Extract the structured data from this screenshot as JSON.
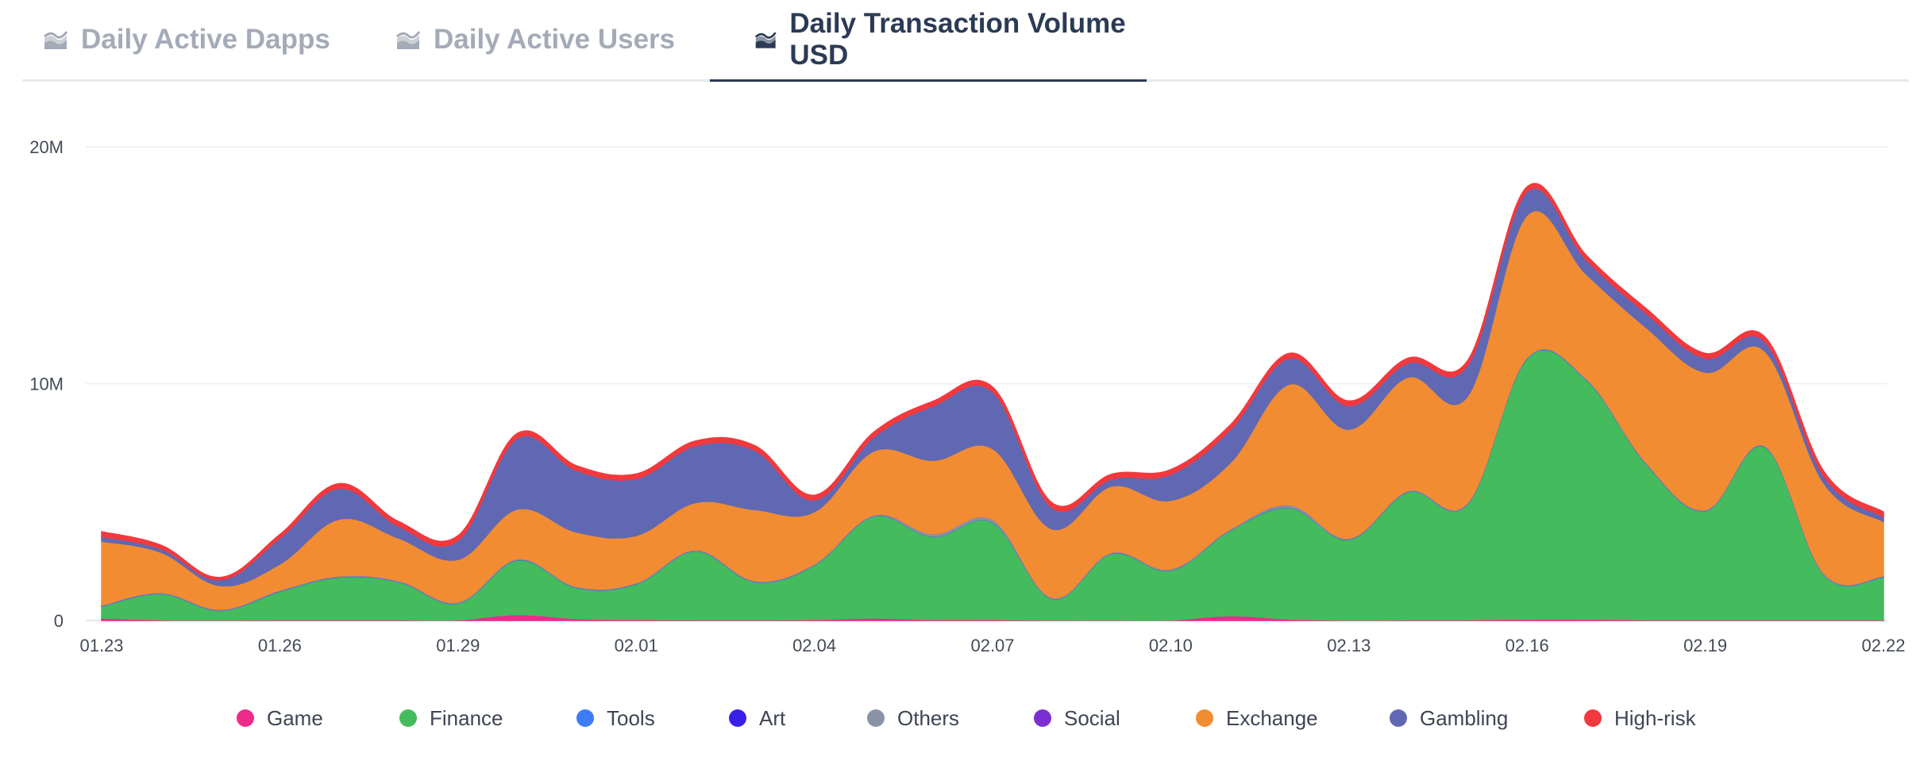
{
  "tabs": [
    {
      "label": "Daily Active Dapps",
      "icon": "area-chart-icon",
      "active": false
    },
    {
      "label": "Daily Active Users",
      "icon": "area-chart-icon",
      "active": false
    },
    {
      "label": "Daily Transaction Volume USD",
      "icon": "area-chart-icon",
      "active": true
    }
  ],
  "chart_data": {
    "type": "area",
    "stacked": true,
    "title": "Daily Transaction Volume USD",
    "x": [
      "01.23",
      "01.24",
      "01.25",
      "01.26",
      "01.27",
      "01.28",
      "01.29",
      "01.30",
      "01.31",
      "02.01",
      "02.02",
      "02.03",
      "02.04",
      "02.05",
      "02.06",
      "02.07",
      "02.08",
      "02.09",
      "02.10",
      "02.11",
      "02.12",
      "02.13",
      "02.14",
      "02.15",
      "02.16",
      "02.17",
      "02.18",
      "02.19",
      "02.20",
      "02.21",
      "02.22"
    ],
    "x_tick_labels": [
      "01.23",
      "01.26",
      "01.29",
      "02.01",
      "02.04",
      "02.07",
      "02.10",
      "02.13",
      "02.16",
      "02.19",
      "02.22"
    ],
    "y_tick_labels": [
      "0",
      "10M",
      "20M"
    ],
    "ylim": [
      0,
      20000000
    ],
    "grid": true,
    "legend_position": "bottom",
    "series": [
      {
        "name": "Game",
        "color": "#ee2a8b",
        "values": [
          100000,
          30000,
          20000,
          30000,
          30000,
          30000,
          30000,
          250000,
          80000,
          40000,
          30000,
          30000,
          40000,
          100000,
          40000,
          40000,
          20000,
          20000,
          20000,
          200000,
          60000,
          20000,
          30000,
          30000,
          60000,
          60000,
          30000,
          30000,
          30000,
          30000,
          30000
        ]
      },
      {
        "name": "Finance",
        "color": "#44bb5c",
        "values": [
          500000,
          1100000,
          400000,
          1200000,
          1800000,
          1600000,
          700000,
          2300000,
          1300000,
          1500000,
          2900000,
          1600000,
          2300000,
          4300000,
          3500000,
          4100000,
          900000,
          2800000,
          2100000,
          3600000,
          4700000,
          3400000,
          5400000,
          4900000,
          11000000,
          10100000,
          6600000,
          4600000,
          7300000,
          1900000,
          1800000
        ]
      },
      {
        "name": "Tools",
        "color": "#3d7cf5",
        "values": [
          10000,
          10000,
          10000,
          10000,
          10000,
          10000,
          10000,
          10000,
          10000,
          10000,
          10000,
          10000,
          10000,
          10000,
          10000,
          10000,
          10000,
          10000,
          10000,
          10000,
          10000,
          10000,
          10000,
          10000,
          10000,
          10000,
          10000,
          10000,
          10000,
          10000,
          10000
        ]
      },
      {
        "name": "Art",
        "color": "#3a1fe8",
        "values": [
          5000,
          5000,
          5000,
          5000,
          5000,
          5000,
          5000,
          5000,
          5000,
          5000,
          5000,
          5000,
          5000,
          5000,
          5000,
          5000,
          5000,
          5000,
          5000,
          5000,
          5000,
          5000,
          5000,
          5000,
          5000,
          5000,
          5000,
          5000,
          5000,
          5000,
          5000
        ]
      },
      {
        "name": "Others",
        "color": "#8a93a6",
        "values": [
          30000,
          30000,
          30000,
          30000,
          30000,
          30000,
          30000,
          30000,
          30000,
          30000,
          30000,
          30000,
          30000,
          30000,
          100000,
          100000,
          30000,
          30000,
          30000,
          30000,
          100000,
          30000,
          30000,
          30000,
          30000,
          30000,
          30000,
          30000,
          30000,
          30000,
          30000
        ]
      },
      {
        "name": "Social",
        "color": "#7b2fd0",
        "values": [
          5000,
          5000,
          5000,
          5000,
          5000,
          5000,
          5000,
          5000,
          5000,
          5000,
          5000,
          5000,
          5000,
          5000,
          5000,
          5000,
          5000,
          5000,
          5000,
          5000,
          5000,
          5000,
          5000,
          5000,
          5000,
          5000,
          5000,
          5000,
          5000,
          5000,
          5000
        ]
      },
      {
        "name": "Exchange",
        "color": "#f28c33",
        "values": [
          2700000,
          1700000,
          1000000,
          1100000,
          2400000,
          1800000,
          1800000,
          2100000,
          2300000,
          2000000,
          2000000,
          3000000,
          2200000,
          2700000,
          3100000,
          3000000,
          2900000,
          2800000,
          2900000,
          2800000,
          5100000,
          4600000,
          4800000,
          4500000,
          6000000,
          4400000,
          5700000,
          5800000,
          4000000,
          3800000,
          2300000
        ]
      },
      {
        "name": "Gambling",
        "color": "#6068b3",
        "values": [
          200000,
          150000,
          250000,
          1100000,
          1300000,
          500000,
          800000,
          3000000,
          2600000,
          2400000,
          2400000,
          2500000,
          500000,
          600000,
          2300000,
          2400000,
          900000,
          300000,
          1100000,
          1400000,
          1100000,
          1000000,
          600000,
          1300000,
          1000000,
          600000,
          600000,
          600000,
          400000,
          300000,
          200000
        ]
      },
      {
        "name": "High-risk",
        "color": "#f2393d",
        "values": [
          200000,
          150000,
          100000,
          150000,
          200000,
          200000,
          200000,
          200000,
          200000,
          200000,
          200000,
          200000,
          200000,
          200000,
          200000,
          200000,
          200000,
          200000,
          200000,
          200000,
          200000,
          200000,
          200000,
          200000,
          200000,
          200000,
          200000,
          200000,
          200000,
          200000,
          200000
        ]
      }
    ]
  }
}
